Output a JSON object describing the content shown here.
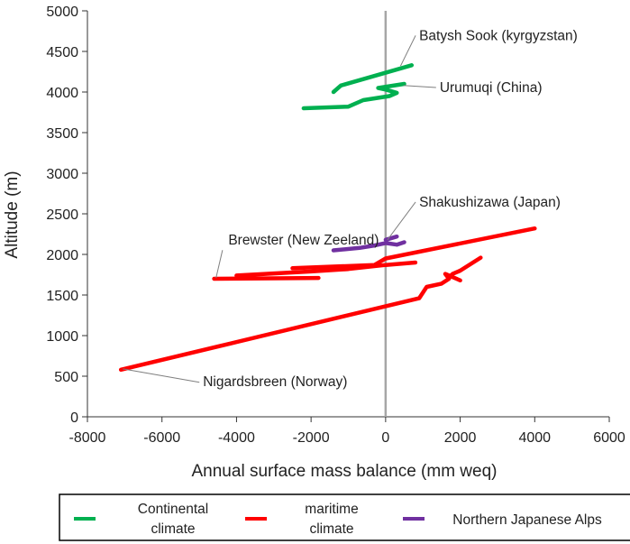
{
  "chart_data": {
    "type": "line",
    "title": "",
    "xlabel": "Annual surface mass balance (mm weq)",
    "ylabel": "Altitude (m)",
    "xlim": [
      -8000,
      6000
    ],
    "ylim": [
      0,
      5000
    ],
    "xticks": [
      -8000,
      -6000,
      -4000,
      -2000,
      0,
      2000,
      4000,
      6000
    ],
    "yticks": [
      0,
      500,
      1000,
      1500,
      2000,
      2500,
      3000,
      3500,
      4000,
      4500,
      5000
    ],
    "zero_line": {
      "x": 0,
      "color": "#a6a6a6"
    },
    "grid": false,
    "legend_position": "bottom",
    "legend": [
      {
        "key": "continental",
        "label_lines": [
          "Continental",
          "climate"
        ],
        "color": "#00b050"
      },
      {
        "key": "maritime",
        "label_lines": [
          "maritime",
          "climate"
        ],
        "color": "#ff0000"
      },
      {
        "key": "japan",
        "label_lines": [
          "Northern Japanese Alps"
        ],
        "color": "#7030a0"
      }
    ],
    "series": [
      {
        "group": "continental",
        "color": "#00b050",
        "x": [
          -1400,
          -1200,
          700
        ],
        "y": [
          4000,
          4080,
          4330
        ]
      },
      {
        "group": "continental",
        "color": "#00b050",
        "x": [
          -2200,
          -1000,
          -600,
          100,
          300,
          0,
          -200,
          500
        ],
        "y": [
          3800,
          3820,
          3900,
          3950,
          3990,
          4030,
          4050,
          4100
        ]
      },
      {
        "group": "maritime",
        "color": "#ff0000",
        "x": [
          -4600,
          -1800
        ],
        "y": [
          1700,
          1710
        ]
      },
      {
        "group": "maritime",
        "color": "#ff0000",
        "x": [
          -4000,
          -2000,
          -1000,
          0,
          800
        ],
        "y": [
          1740,
          1790,
          1820,
          1870,
          1900
        ]
      },
      {
        "group": "maritime",
        "color": "#ff0000",
        "x": [
          -2500,
          -300,
          0,
          4000
        ],
        "y": [
          1830,
          1870,
          1950,
          2320
        ]
      },
      {
        "group": "maritime",
        "color": "#ff0000",
        "x": [
          -7100,
          900,
          1100,
          1500,
          1700,
          1600,
          2000
        ],
        "y": [
          580,
          1460,
          1600,
          1640,
          1700,
          1760,
          1680
        ]
      },
      {
        "group": "maritime",
        "color": "#ff0000",
        "x": [
          1700,
          1800,
          2000,
          2550
        ],
        "y": [
          1720,
          1760,
          1800,
          1960
        ]
      },
      {
        "group": "japan",
        "color": "#7030a0",
        "x": [
          -1400,
          -700,
          -300,
          0,
          300,
          500
        ],
        "y": [
          2050,
          2080,
          2110,
          2140,
          2120,
          2150
        ]
      },
      {
        "group": "japan",
        "color": "#7030a0",
        "x": [
          0,
          300
        ],
        "y": [
          2180,
          2220
        ]
      }
    ],
    "annotations": [
      {
        "text": "Batysh Sook (kyrgyzstan)",
        "point": [
          400,
          4320
        ],
        "label": [
          900,
          4640
        ],
        "anchor": "start"
      },
      {
        "text": "Urumuqi (China)",
        "point": [
          480,
          4080
        ],
        "label": [
          1450,
          4000
        ],
        "anchor": "start"
      },
      {
        "text": "Shakushizawa (Japan)",
        "point": [
          50,
          2180
        ],
        "label": [
          900,
          2590
        ],
        "anchor": "start"
      },
      {
        "text": "Brewster (New Zeeland)",
        "point": [
          -4550,
          1710
        ],
        "label": [
          -2200,
          2120
        ],
        "anchor": "middle"
      },
      {
        "text": "Nigardsbreen (Norway)",
        "point": [
          -7050,
          590
        ],
        "label": [
          -4900,
          380
        ],
        "anchor": "start"
      }
    ]
  }
}
